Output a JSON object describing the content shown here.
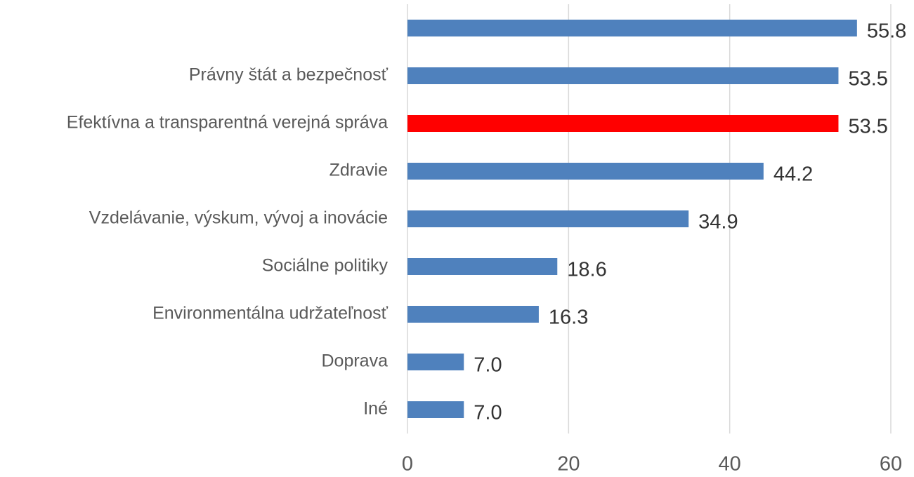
{
  "chart_data": {
    "type": "hbar",
    "categories": [
      null,
      "Právny štát a bezpečnosť",
      "Efektívna a transparentná verejná správa",
      "Zdravie",
      "Vzdelávanie, výskum, vývoj a inovácie",
      "Sociálne politiky",
      "Environmentálna udržateľnosť",
      "Doprava",
      "Iné"
    ],
    "values": [
      55.8,
      53.5,
      53.5,
      44.2,
      34.9,
      18.6,
      16.3,
      7,
      7
    ],
    "value_labels": [
      "55.8",
      "53.5",
      "53.5",
      "44.2",
      "34.9",
      "18.6",
      "16.3",
      "7.0",
      "7.0"
    ],
    "colors": [
      "#4f81bd",
      "#4f81bd",
      "#ff0000",
      "#4f81bd",
      "#4f81bd",
      "#4f81bd",
      "#4f81bd",
      "#4f81bd",
      "#4f81bd"
    ],
    "xlim": [
      0,
      60
    ],
    "xticks": [
      0,
      20,
      40,
      60
    ],
    "grid": true
  }
}
